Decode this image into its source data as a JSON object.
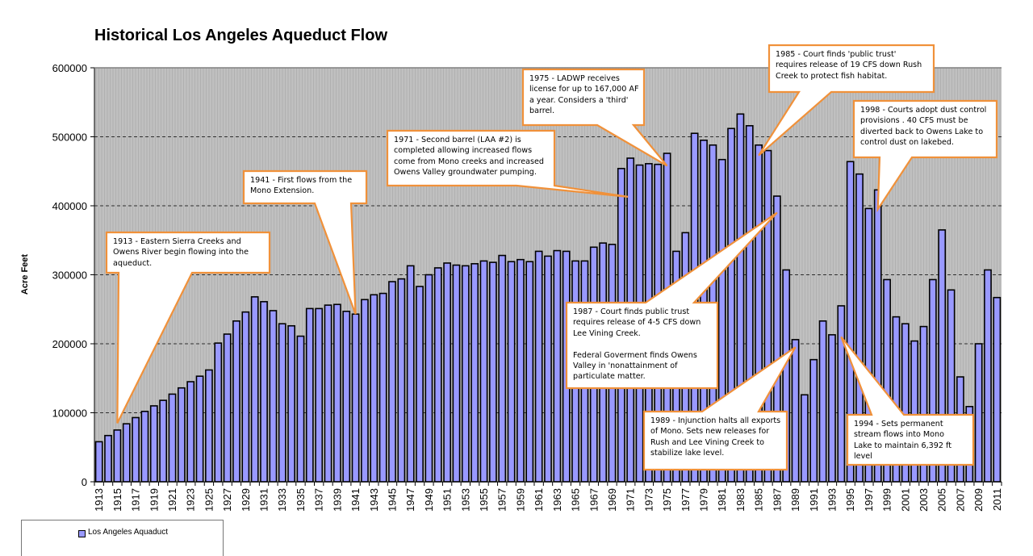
{
  "chart_data": {
    "type": "bar",
    "title": "Historical Los Angeles Aqueduct Flow",
    "xlabel": "",
    "ylabel": "Acre Feet",
    "ylim": [
      0,
      600000
    ],
    "yticks": [
      0,
      100000,
      200000,
      300000,
      400000,
      500000,
      600000
    ],
    "ytick_labels": [
      "0",
      "100000",
      "200000",
      "300000",
      "400000",
      "500000",
      "600000"
    ],
    "grid": true,
    "legend_position": "bottom-left",
    "plot_background": "#c0c0c0",
    "bar_color": "#9999ff",
    "annotation_color": "#f0913a",
    "categories": [
      "1913",
      "1914",
      "1915",
      "1916",
      "1917",
      "1918",
      "1919",
      "1920",
      "1921",
      "1922",
      "1923",
      "1924",
      "1925",
      "1926",
      "1927",
      "1928",
      "1929",
      "1930",
      "1931",
      "1932",
      "1933",
      "1934",
      "1935",
      "1936",
      "1937",
      "1938",
      "1939",
      "1940",
      "1941",
      "1942",
      "1943",
      "1944",
      "1945",
      "1946",
      "1947",
      "1948",
      "1949",
      "1950",
      "1951",
      "1952",
      "1953",
      "1954",
      "1955",
      "1956",
      "1957",
      "1958",
      "1959",
      "1960",
      "1961",
      "1962",
      "1963",
      "1964",
      "1965",
      "1966",
      "1967",
      "1968",
      "1969",
      "1970",
      "1971",
      "1972",
      "1973",
      "1974",
      "1975",
      "1976",
      "1977",
      "1978",
      "1979",
      "1980",
      "1981",
      "1982",
      "1983",
      "1984",
      "1985",
      "1986",
      "1987",
      "1988",
      "1989",
      "1990",
      "1991",
      "1992",
      "1993",
      "1994",
      "1995",
      "1996",
      "1997",
      "1998",
      "1999",
      "2000",
      "2001",
      "2002",
      "2003",
      "2004",
      "2005",
      "2006",
      "2007",
      "2008",
      "2009",
      "2010",
      "2011"
    ],
    "x_tick_labels": [
      "1913",
      "1915",
      "1917",
      "1919",
      "1921",
      "1923",
      "1925",
      "1927",
      "1929",
      "1931",
      "1933",
      "1935",
      "1937",
      "1939",
      "1941",
      "1943",
      "1945",
      "1947",
      "1949",
      "1951",
      "1953",
      "1955",
      "1957",
      "1959",
      "1961",
      "1963",
      "1965",
      "1967",
      "1969",
      "1971",
      "1973",
      "1975",
      "1977",
      "1979",
      "1981",
      "1983",
      "1985",
      "1987",
      "1989",
      "1991",
      "1993",
      "1995",
      "1997",
      "1999",
      "2001",
      "2003",
      "2005",
      "2007",
      "2009",
      "2011"
    ],
    "series": [
      {
        "name": "Los Angeles Aquaduct",
        "values": [
          58000,
          67000,
          75000,
          84000,
          93000,
          102000,
          110000,
          118000,
          127000,
          136000,
          145000,
          153000,
          162000,
          201000,
          214000,
          233000,
          246000,
          268000,
          261000,
          248000,
          229000,
          226000,
          211000,
          251000,
          251000,
          256000,
          257000,
          247000,
          243000,
          264000,
          271000,
          273000,
          290000,
          294000,
          313000,
          283000,
          300000,
          310000,
          317000,
          314000,
          313000,
          316000,
          320000,
          318000,
          328000,
          319000,
          322000,
          319000,
          334000,
          327000,
          335000,
          334000,
          320000,
          320000,
          340000,
          346000,
          344000,
          454000,
          469000,
          459000,
          461000,
          460000,
          476000,
          334000,
          361000,
          505000,
          495000,
          488000,
          467000,
          512000,
          533000,
          516000,
          488000,
          480000,
          414000,
          307000,
          206000,
          126000,
          177000,
          233000,
          213000,
          255000,
          464000,
          446000,
          396000,
          423000,
          293000,
          239000,
          229000,
          204000,
          225000,
          293000,
          365000,
          278000,
          152000,
          109000,
          200000,
          307000,
          267000
        ]
      }
    ],
    "annotations": [
      {
        "year": "1915",
        "text": "1913 - Eastern Sierra Creeks and\nOwens River begin flowing into the\naqueduct."
      },
      {
        "year": "1941",
        "text": "1941 - First flows from the\nMono Extension."
      },
      {
        "year": "1971",
        "text": "1971 - Second barrel (LAA #2) is\ncompleted allowing  increased flows\ncome from Mono creeks and increased\nOwens Valley groundwater pumping."
      },
      {
        "year": "1975",
        "text": "1975 - LADWP receives\nlicense for up to 167,000 AF\na year.  Considers a 'third'\nbarrel."
      },
      {
        "year": "1985",
        "text": "1985 - Court finds 'public trust'\nrequires release of 19 CFS down Rush\nCreek  to protect fish habitat."
      },
      {
        "year": "1998",
        "text": "1998 -  Courts adopt dust control\nprovisions . 40 CFS must be\ndiverted back to Owens Lake to\ncontrol dust on lakebed."
      },
      {
        "year": "1987",
        "text": "1987 - Court finds public trust\nrequires release of  4-5 CFS  down\nLee Vining Creek.\n\nFederal Goverment finds Owens\nValley  in 'nonattainment of\nparticulate matter."
      },
      {
        "year": "1989",
        "text": "1989 - Injunction halts all exports\nof Mono.  Sets new releases  for\nRush and Lee Vining Creek to\nstabilize lake level."
      },
      {
        "year": "1994",
        "text": "1994 - Sets permanent\nstream flows into Mono\nLake to maintain 6,392 ft\nlevel"
      }
    ]
  }
}
